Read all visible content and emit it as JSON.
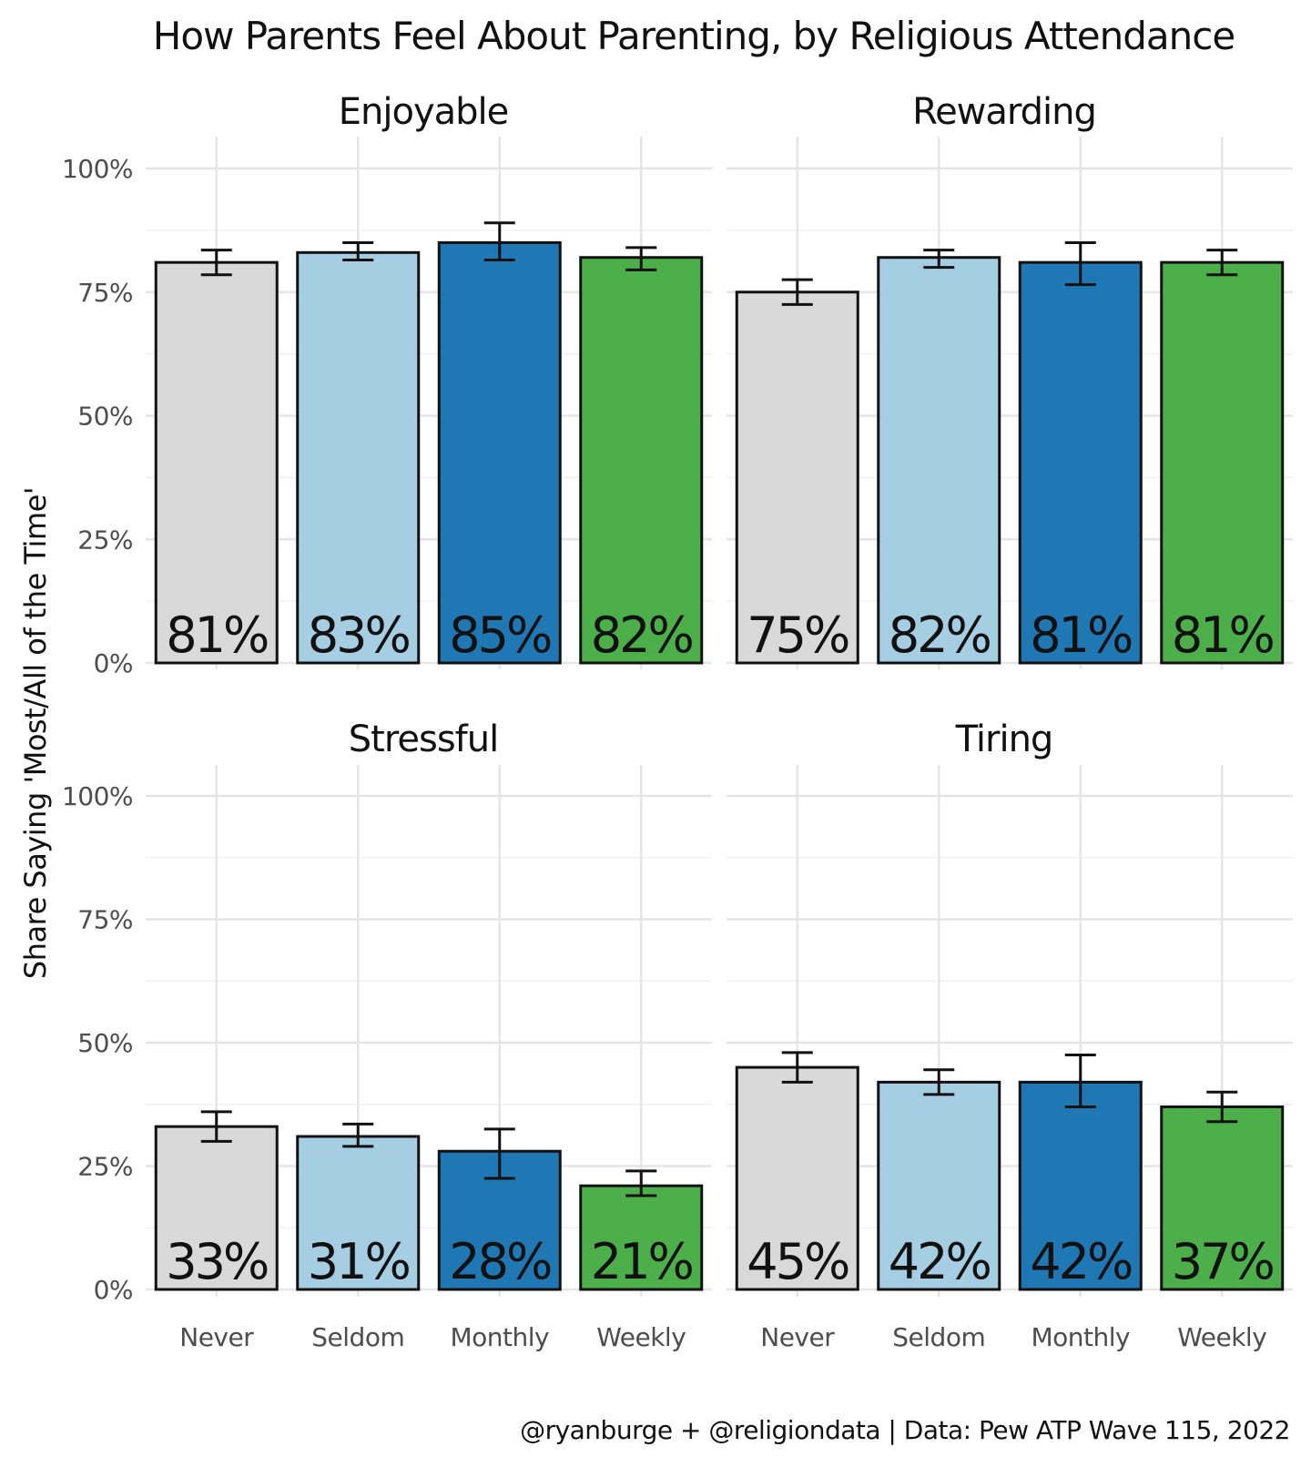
{
  "chart_data": {
    "type": "bar",
    "title": "How Parents Feel About Parenting, by Religious Attendance",
    "ylabel": "Share Saying 'Most/All of the Time'",
    "xlabel": "",
    "caption": "@ryanburge + @religiondata | Data: Pew ATP Wave 115, 2022",
    "categories": [
      "Never",
      "Seldom",
      "Monthly",
      "Weekly"
    ],
    "colors": [
      "#d9d9d9",
      "#a6cee3",
      "#1f78b4",
      "#4daf4a"
    ],
    "ylim": [
      0,
      1
    ],
    "yticks": [
      {
        "value": 0,
        "label": "0%"
      },
      {
        "value": 0.25,
        "label": "25%"
      },
      {
        "value": 0.5,
        "label": "50%"
      },
      {
        "value": 0.75,
        "label": "75%"
      },
      {
        "value": 1.0,
        "label": "100%"
      }
    ],
    "grid": true,
    "facets": [
      {
        "name": "Enjoyable",
        "values": [
          0.81,
          0.83,
          0.85,
          0.82
        ],
        "labels": [
          "81%",
          "83%",
          "85%",
          "82%"
        ],
        "error_low": [
          0.785,
          0.815,
          0.815,
          0.795
        ],
        "error_high": [
          0.835,
          0.85,
          0.89,
          0.84
        ]
      },
      {
        "name": "Rewarding",
        "values": [
          0.75,
          0.82,
          0.81,
          0.81
        ],
        "labels": [
          "75%",
          "82%",
          "81%",
          "81%"
        ],
        "error_low": [
          0.725,
          0.8,
          0.765,
          0.785
        ],
        "error_high": [
          0.775,
          0.835,
          0.85,
          0.835
        ]
      },
      {
        "name": "Stressful",
        "values": [
          0.33,
          0.31,
          0.28,
          0.21
        ],
        "labels": [
          "33%",
          "31%",
          "28%",
          "21%"
        ],
        "error_low": [
          0.3,
          0.29,
          0.225,
          0.19
        ],
        "error_high": [
          0.36,
          0.335,
          0.325,
          0.24
        ]
      },
      {
        "name": "Tiring",
        "values": [
          0.45,
          0.42,
          0.42,
          0.37
        ],
        "labels": [
          "45%",
          "42%",
          "42%",
          "37%"
        ],
        "error_low": [
          0.42,
          0.395,
          0.37,
          0.34
        ],
        "error_high": [
          0.48,
          0.445,
          0.475,
          0.4
        ]
      }
    ]
  }
}
